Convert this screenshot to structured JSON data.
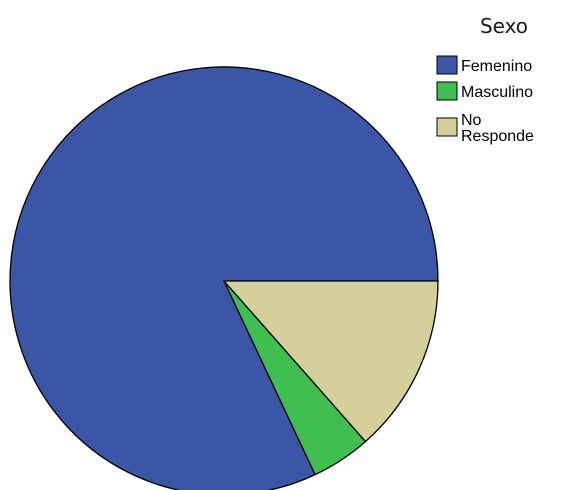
{
  "chart_data": {
    "type": "pie",
    "legend_title": "Sexo",
    "legend_position": "top-right",
    "start_angle_deg": 0,
    "direction": "counterclockwise",
    "slices": [
      {
        "label": "Femenino",
        "value": 82,
        "color": "#3b55a7"
      },
      {
        "label": "Masculino",
        "value": 4.5,
        "color": "#3fbf4f"
      },
      {
        "label": [
          "No",
          "Responde"
        ],
        "value": 13.5,
        "color": "#d5d09b"
      }
    ]
  }
}
